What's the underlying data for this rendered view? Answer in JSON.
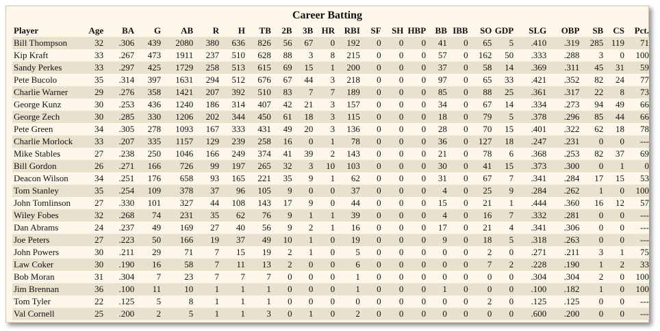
{
  "title": "Career Batting",
  "columns": [
    "Player",
    "Age",
    "BA",
    "G",
    "AB",
    "R",
    "H",
    "TB",
    "2B",
    "3B",
    "HR",
    "RBI",
    "SF",
    "SH",
    "HBP",
    "BB",
    "IBB",
    "SO",
    "GDP",
    "SLG",
    "OBP",
    "SB",
    "CS",
    "Pct."
  ],
  "rows": [
    [
      "Bill Thompson",
      "32",
      ".306",
      "439",
      "2080",
      "380",
      "636",
      "826",
      "56",
      "67",
      "0",
      "192",
      "0",
      "0",
      "0",
      "41",
      "0",
      "65",
      "5",
      ".410",
      ".319",
      "285",
      "119",
      "71"
    ],
    [
      "Kip Kraft",
      "33",
      ".267",
      "473",
      "1911",
      "237",
      "510",
      "628",
      "88",
      "3",
      "8",
      "215",
      "0",
      "0",
      "0",
      "57",
      "0",
      "162",
      "50",
      ".333",
      ".288",
      "3",
      "0",
      "100"
    ],
    [
      "Sandy Perkes",
      "33",
      ".297",
      "425",
      "1729",
      "258",
      "513",
      "615",
      "69",
      "15",
      "1",
      "200",
      "0",
      "0",
      "0",
      "37",
      "0",
      "58",
      "14",
      ".369",
      ".311",
      "45",
      "31",
      "59"
    ],
    [
      "Pete Bucolo",
      "35",
      ".314",
      "397",
      "1631",
      "294",
      "512",
      "676",
      "67",
      "44",
      "3",
      "218",
      "0",
      "0",
      "0",
      "97",
      "0",
      "65",
      "33",
      ".421",
      ".352",
      "82",
      "24",
      "77"
    ],
    [
      "Charlie Warner",
      "29",
      ".276",
      "358",
      "1421",
      "207",
      "392",
      "510",
      "83",
      "7",
      "7",
      "189",
      "0",
      "0",
      "0",
      "85",
      "0",
      "88",
      "25",
      ".361",
      ".317",
      "22",
      "8",
      "73"
    ],
    [
      "George Kunz",
      "30",
      ".253",
      "436",
      "1240",
      "186",
      "314",
      "407",
      "42",
      "21",
      "3",
      "157",
      "0",
      "0",
      "0",
      "34",
      "0",
      "67",
      "14",
      ".334",
      ".273",
      "94",
      "49",
      "66"
    ],
    [
      "George Zech",
      "30",
      ".285",
      "330",
      "1206",
      "202",
      "344",
      "450",
      "61",
      "18",
      "3",
      "115",
      "0",
      "0",
      "0",
      "18",
      "0",
      "79",
      "5",
      ".378",
      ".296",
      "85",
      "44",
      "66"
    ],
    [
      "Pete Green",
      "34",
      ".305",
      "278",
      "1093",
      "167",
      "333",
      "431",
      "49",
      "20",
      "3",
      "136",
      "0",
      "0",
      "0",
      "28",
      "0",
      "70",
      "15",
      ".401",
      ".322",
      "62",
      "18",
      "78"
    ],
    [
      "Charlie Morlock",
      "33",
      ".207",
      "335",
      "1157",
      "129",
      "239",
      "258",
      "16",
      "0",
      "1",
      "78",
      "0",
      "0",
      "0",
      "36",
      "0",
      "127",
      "18",
      ".247",
      ".231",
      "0",
      "0",
      "---"
    ],
    [
      "Mike Stables",
      "27",
      ".238",
      "250",
      "1046",
      "166",
      "249",
      "374",
      "41",
      "39",
      "2",
      "143",
      "0",
      "0",
      "0",
      "21",
      "0",
      "78",
      "6",
      ".368",
      ".253",
      "82",
      "37",
      "69"
    ],
    [
      "Bill Gordon",
      "26",
      ".271",
      "166",
      "726",
      "99",
      "197",
      "265",
      "32",
      "3",
      "10",
      "103",
      "0",
      "0",
      "0",
      "30",
      "0",
      "41",
      "15",
      ".373",
      ".300",
      "0",
      "1",
      "0"
    ],
    [
      "Deacon Wilson",
      "34",
      ".251",
      "176",
      "658",
      "93",
      "165",
      "221",
      "35",
      "9",
      "1",
      "62",
      "0",
      "0",
      "0",
      "31",
      "0",
      "67",
      "7",
      ".341",
      ".284",
      "17",
      "15",
      "53"
    ],
    [
      "Tom Stanley",
      "35",
      ".254",
      "109",
      "378",
      "37",
      "96",
      "105",
      "9",
      "0",
      "0",
      "37",
      "0",
      "0",
      "0",
      "4",
      "0",
      "25",
      "9",
      ".284",
      ".262",
      "1",
      "0",
      "100"
    ],
    [
      "John Tomlinson",
      "27",
      ".330",
      "101",
      "327",
      "44",
      "108",
      "143",
      "17",
      "9",
      "0",
      "44",
      "0",
      "0",
      "0",
      "15",
      "0",
      "21",
      "1",
      ".444",
      ".360",
      "16",
      "12",
      "57"
    ],
    [
      "Wiley Fobes",
      "32",
      ".268",
      "74",
      "231",
      "35",
      "62",
      "76",
      "9",
      "1",
      "1",
      "39",
      "0",
      "0",
      "0",
      "4",
      "0",
      "16",
      "7",
      ".332",
      ".281",
      "0",
      "0",
      "---"
    ],
    [
      "Dan Abrams",
      "24",
      ".237",
      "49",
      "169",
      "27",
      "40",
      "56",
      "9",
      "2",
      "1",
      "16",
      "0",
      "0",
      "0",
      "17",
      "0",
      "21",
      "4",
      ".341",
      ".306",
      "0",
      "0",
      "---"
    ],
    [
      "Joe Peters",
      "27",
      ".223",
      "50",
      "166",
      "19",
      "37",
      "49",
      "10",
      "1",
      "0",
      "19",
      "0",
      "0",
      "0",
      "9",
      "0",
      "18",
      "5",
      ".318",
      ".263",
      "0",
      "0",
      "---"
    ],
    [
      "John Powers",
      "30",
      ".211",
      "29",
      "71",
      "7",
      "15",
      "19",
      "2",
      "1",
      "0",
      "5",
      "0",
      "0",
      "0",
      "0",
      "0",
      "2",
      "0",
      ".271",
      ".211",
      "3",
      "1",
      "75"
    ],
    [
      "Law Coker",
      "30",
      ".190",
      "16",
      "58",
      "7",
      "11",
      "13",
      "2",
      "0",
      "0",
      "6",
      "0",
      "0",
      "0",
      "0",
      "0",
      "7",
      "2",
      ".228",
      ".190",
      "1",
      "2",
      "33"
    ],
    [
      "Bob Moran",
      "31",
      ".304",
      "7",
      "23",
      "7",
      "7",
      "7",
      "0",
      "0",
      "0",
      "1",
      "0",
      "0",
      "0",
      "0",
      "0",
      "0",
      "0",
      ".304",
      ".304",
      "2",
      "0",
      "100"
    ],
    [
      "Jim Brennan",
      "36",
      ".100",
      "11",
      "10",
      "1",
      "1",
      "1",
      "0",
      "0",
      "0",
      "1",
      "0",
      "0",
      "0",
      "1",
      "0",
      "0",
      "0",
      ".100",
      ".182",
      "1",
      "0",
      "100"
    ],
    [
      "Tom Tyler",
      "22",
      ".125",
      "5",
      "8",
      "1",
      "1",
      "1",
      "0",
      "0",
      "0",
      "0",
      "0",
      "0",
      "0",
      "0",
      "0",
      "2",
      "0",
      ".125",
      ".125",
      "0",
      "0",
      "---"
    ],
    [
      "Val Cornell",
      "25",
      ".200",
      "2",
      "5",
      "1",
      "1",
      "3",
      "0",
      "1",
      "0",
      "2",
      "0",
      "0",
      "0",
      "0",
      "0",
      "0",
      "0",
      ".600",
      ".200",
      "0",
      "0",
      "---"
    ]
  ]
}
